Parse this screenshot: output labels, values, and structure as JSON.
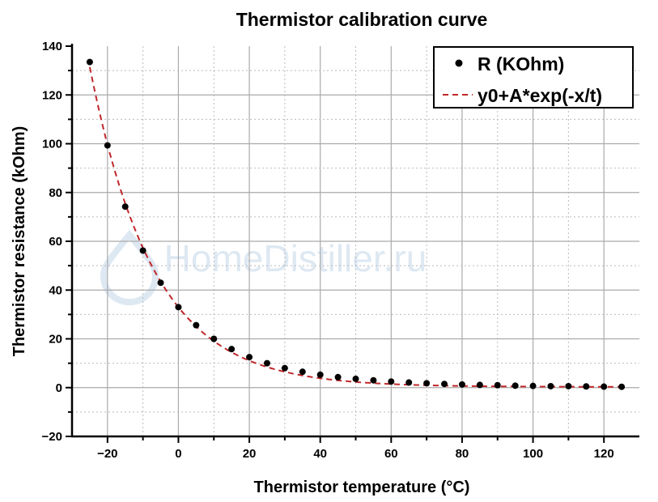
{
  "chart_data": {
    "type": "scatter",
    "title": "Thermistor calibration curve",
    "xlabel": "Thermistor temperature (°C)",
    "ylabel": "Thermistor resistance (kOhm)",
    "xlim": [
      -30,
      130
    ],
    "ylim": [
      -20,
      140
    ],
    "xticks": [
      -20,
      0,
      20,
      40,
      60,
      80,
      100,
      120
    ],
    "yticks": [
      -20,
      0,
      20,
      40,
      60,
      80,
      100,
      120,
      140
    ],
    "grid": true,
    "legend_position": "top-right",
    "watermark": "HomeDistiller.ru",
    "series": [
      {
        "name": "R (KOhm)",
        "kind": "points",
        "color": "#000000",
        "x": [
          -25,
          -20,
          -15,
          -10,
          -5,
          0,
          5,
          10,
          15,
          20,
          25,
          30,
          35,
          40,
          45,
          50,
          55,
          60,
          65,
          70,
          75,
          80,
          85,
          90,
          95,
          100,
          105,
          110,
          115,
          120,
          125
        ],
        "y": [
          133.5,
          99.3,
          74.2,
          56.2,
          43,
          33,
          25.6,
          20,
          15.8,
          12.5,
          10,
          8,
          6.5,
          5.3,
          4.3,
          3.6,
          3,
          2.5,
          2.1,
          1.8,
          1.5,
          1.3,
          1.1,
          1,
          0.8,
          0.7,
          0.6,
          0.6,
          0.5,
          0.4,
          0.35
        ]
      },
      {
        "name": "y0+A*exp(-x/t)",
        "kind": "dashed-line",
        "color": "#c0282a"
      }
    ]
  }
}
